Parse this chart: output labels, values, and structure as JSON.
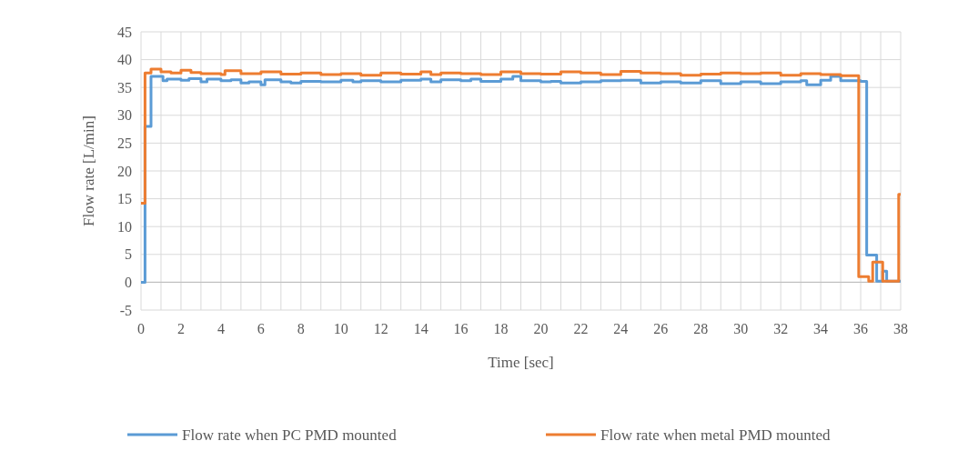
{
  "chart_data": {
    "type": "step",
    "xlabel": "Time [sec]",
    "ylabel": "Flow rate [L/min]",
    "xlim": [
      0,
      38
    ],
    "xticks": [
      0,
      {
        "value": 1,
        "label": null
      },
      2,
      {
        "value": 3,
        "label": null
      },
      4,
      {
        "value": 5,
        "label": null
      },
      6,
      {
        "value": 7,
        "label": null
      },
      8,
      {
        "value": 9,
        "label": null
      },
      10,
      {
        "value": 11,
        "label": null
      },
      12,
      {
        "value": 13,
        "label": null
      },
      14,
      {
        "value": 15,
        "label": null
      },
      16,
      {
        "value": 17,
        "label": null
      },
      18,
      {
        "value": 19,
        "label": null
      },
      20,
      {
        "value": 21,
        "label": null
      },
      22,
      {
        "value": 23,
        "label": null
      },
      24,
      {
        "value": 25,
        "label": null
      },
      26,
      {
        "value": 27,
        "label": null
      },
      28,
      {
        "value": 29,
        "label": null
      },
      30,
      {
        "value": 31,
        "label": null
      },
      32,
      {
        "value": 33,
        "label": null
      },
      34,
      {
        "value": 35,
        "label": null
      },
      36,
      {
        "value": 37,
        "label": null
      },
      38
    ],
    "ylim": [
      -5,
      45
    ],
    "yticks": [
      -5,
      0,
      5,
      10,
      15,
      20,
      25,
      30,
      35,
      40,
      45
    ],
    "grid": true,
    "legend": "bottom",
    "line_style": "solid",
    "marker": "none",
    "series": [
      {
        "name": "Flow rate when PC PMD mounted",
        "color": "#5b9bd5",
        "x": [
          0,
          0.2,
          0.5,
          1.1,
          1.3,
          2,
          2.4,
          3,
          3.3,
          4,
          4.5,
          5,
          5.4,
          6,
          6.2,
          7,
          7.5,
          8,
          9,
          10,
          10.6,
          11,
          12,
          13,
          14,
          14.5,
          15,
          16,
          16.5,
          17,
          18,
          18.6,
          19,
          20,
          20.5,
          21,
          22,
          23,
          24,
          25,
          26,
          27,
          28,
          29,
          30,
          31,
          32,
          33,
          33.3,
          34,
          34.5,
          35,
          36,
          36.3,
          36.8,
          37.1,
          37.3,
          38
        ],
        "values": [
          0,
          28,
          37,
          36.2,
          36.5,
          36.3,
          36.6,
          36,
          36.5,
          36.2,
          36.4,
          35.8,
          36,
          35.5,
          36.4,
          36,
          35.8,
          36.1,
          36,
          36.3,
          36,
          36.2,
          36,
          36.3,
          36.5,
          36,
          36.4,
          36.2,
          36.5,
          36.1,
          36.5,
          37,
          36.2,
          36,
          36.1,
          35.8,
          36,
          36.2,
          36.3,
          35.8,
          36,
          35.8,
          36.2,
          35.7,
          36,
          35.7,
          36,
          36.2,
          35.5,
          36.3,
          37,
          36.2,
          36.1,
          4.9,
          0.2,
          2,
          0.2,
          0.2
        ]
      },
      {
        "name": "Flow rate when metal PMD mounted",
        "color": "#ed7d31",
        "x": [
          0,
          0.2,
          0.5,
          1,
          1.5,
          2,
          2.5,
          3,
          4,
          4.2,
          5,
          6,
          7,
          8,
          9,
          10,
          11,
          12,
          13,
          14,
          14.5,
          15,
          16,
          17,
          18,
          19,
          20,
          21,
          22,
          23,
          24,
          25,
          26,
          27,
          28,
          29,
          30,
          31,
          32,
          33,
          34,
          35,
          35.9,
          36.4,
          36.6,
          37.1,
          37.9,
          38
        ],
        "values": [
          14.2,
          37.6,
          38.3,
          37.8,
          37.6,
          38.1,
          37.7,
          37.5,
          37.3,
          38,
          37.5,
          37.8,
          37.4,
          37.6,
          37.3,
          37.5,
          37.2,
          37.6,
          37.4,
          37.8,
          37.3,
          37.6,
          37.5,
          37.3,
          37.8,
          37.5,
          37.4,
          37.8,
          37.6,
          37.3,
          37.9,
          37.6,
          37.5,
          37.2,
          37.4,
          37.6,
          37.5,
          37.6,
          37.2,
          37.5,
          37.3,
          37.1,
          1,
          0.2,
          3.6,
          0.2,
          15.8,
          15.8
        ]
      }
    ]
  }
}
